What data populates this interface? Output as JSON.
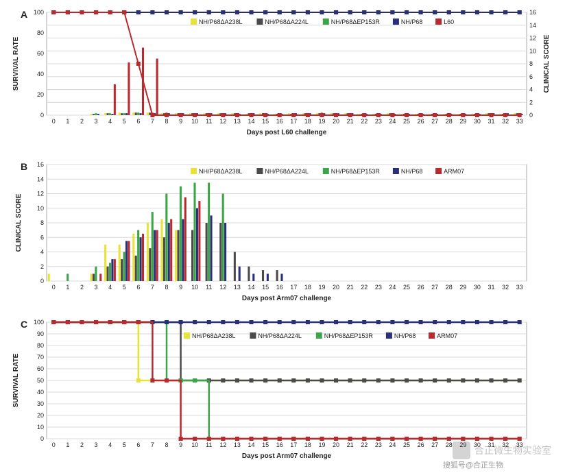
{
  "figure_bg": "#ffffff",
  "panel_labels": {
    "A": "A",
    "B": "B",
    "C": "C"
  },
  "series": {
    "s1": {
      "label": "NH/P68ΔA238L",
      "color": "#e8e337"
    },
    "s2": {
      "label": "NH/P68ΔA224L",
      "color": "#4a4a4a"
    },
    "s3": {
      "label": "NH/P68ΔEP153R",
      "color": "#3aa648"
    },
    "s4": {
      "label": "NH/P68",
      "color": "#2a2f7a"
    },
    "L60": {
      "label": "L60",
      "color": "#b9292e"
    },
    "ARM07": {
      "label": "ARM07",
      "color": "#b9292e"
    }
  },
  "panelA": {
    "type": "dual-axis bar+step",
    "x_label": "Days post L60 challenge",
    "y_left_label": "SURVIVAL RATE",
    "y_right_label": "CLINICAL SCORE",
    "x_ticks": [
      0,
      1,
      2,
      3,
      4,
      5,
      6,
      7,
      8,
      9,
      10,
      11,
      12,
      13,
      14,
      15,
      16,
      17,
      18,
      19,
      20,
      21,
      22,
      23,
      24,
      25,
      26,
      27,
      28,
      29,
      30,
      31,
      32,
      33
    ],
    "y_left_lim": [
      0,
      100
    ],
    "y_left_step": 20,
    "y_right_lim": [
      0,
      16
    ],
    "y_right_step": 2,
    "grid_color": "#d9d9d9",
    "survival_series": [
      "s1",
      "s2",
      "s3",
      "s4",
      "L60"
    ],
    "survival": {
      "s1": [
        100,
        100,
        100,
        100,
        100,
        100,
        100,
        100,
        100,
        100,
        100,
        100,
        100,
        100,
        100,
        100,
        100,
        100,
        100,
        100,
        100,
        100,
        100,
        100,
        100,
        100,
        100,
        100,
        100,
        100,
        100,
        100,
        100,
        100
      ],
      "s2": [
        100,
        100,
        100,
        100,
        100,
        100,
        100,
        100,
        100,
        100,
        100,
        100,
        100,
        100,
        100,
        100,
        100,
        100,
        100,
        100,
        100,
        100,
        100,
        100,
        100,
        100,
        100,
        100,
        100,
        100,
        100,
        100,
        100,
        100
      ],
      "s3": [
        100,
        100,
        100,
        100,
        100,
        100,
        100,
        100,
        100,
        100,
        100,
        100,
        100,
        100,
        100,
        100,
        100,
        100,
        100,
        100,
        100,
        100,
        100,
        100,
        100,
        100,
        100,
        100,
        100,
        100,
        100,
        100,
        100,
        100
      ],
      "s4": [
        100,
        100,
        100,
        100,
        100,
        100,
        100,
        100,
        100,
        100,
        100,
        100,
        100,
        100,
        100,
        100,
        100,
        100,
        100,
        100,
        100,
        100,
        100,
        100,
        100,
        100,
        100,
        100,
        100,
        100,
        100,
        100,
        100,
        100
      ],
      "L60": [
        100,
        100,
        100,
        100,
        100,
        100,
        50,
        0,
        0,
        0,
        0,
        0,
        0,
        0,
        0,
        0,
        0,
        0,
        0,
        0,
        0,
        0,
        0,
        0,
        0,
        0,
        0,
        0,
        0,
        0,
        0,
        0,
        0,
        0
      ]
    },
    "bars_order": [
      "s1",
      "s2",
      "s3",
      "s4",
      "L60"
    ],
    "clinical": {
      "s1": [
        0,
        0,
        0,
        0.2,
        0.3,
        0.4,
        0.4,
        0.4,
        0.3,
        0.3,
        0.3,
        0.3,
        0.3,
        0.3,
        0.2,
        0.3,
        0.2,
        0.3,
        0.3,
        0.3,
        0.3,
        0.3,
        0.2,
        0.2,
        0.3,
        0.2,
        0.2,
        0.2,
        0.2,
        0.2,
        0.2,
        0.3,
        0.2,
        0.3
      ],
      "s2": [
        0,
        0,
        0,
        0.2,
        0.3,
        0.3,
        0.4,
        0.4,
        0.3,
        0.3,
        0.3,
        0.3,
        0.3,
        0.3,
        0.3,
        0.3,
        0.2,
        0.2,
        0.3,
        0.3,
        0.3,
        0.3,
        0.2,
        0.2,
        0.3,
        0.2,
        0.2,
        0.2,
        0.2,
        0.2,
        0.2,
        0.3,
        0.2,
        0.3
      ],
      "s3": [
        0,
        0,
        0,
        0.3,
        0.3,
        0.3,
        0.4,
        0.4,
        0.4,
        0.3,
        0.3,
        0.3,
        0.3,
        0.3,
        0.3,
        0.3,
        0.3,
        0.3,
        0.3,
        0.4,
        0.3,
        0.3,
        0.3,
        0.3,
        0.3,
        0.3,
        0.3,
        0.2,
        0.3,
        0.2,
        0.2,
        0.3,
        0.3,
        0.3
      ],
      "s4": [
        0,
        0,
        0,
        0.2,
        0.2,
        0.3,
        0.3,
        0.3,
        0.3,
        0.3,
        0.3,
        0.3,
        0.3,
        0.2,
        0.3,
        0.2,
        0.2,
        0.3,
        0.3,
        0.3,
        0.3,
        0.3,
        0.2,
        0.2,
        0.2,
        0.2,
        0.2,
        0.2,
        0.2,
        0.2,
        0.2,
        0.3,
        0.3,
        0.2
      ],
      "L60": [
        0,
        0,
        0,
        0,
        4.8,
        8.2,
        10.5,
        8.8,
        0,
        0,
        0,
        0,
        0,
        0,
        0,
        0,
        0,
        0,
        0,
        0,
        0,
        0,
        0,
        0,
        0,
        0,
        0,
        0,
        0,
        0,
        0,
        0,
        0,
        0
      ]
    }
  },
  "panelB": {
    "type": "grouped-bar",
    "x_label": "Days post Arm07 challenge",
    "y_label": "CLINICAL SCORE",
    "x_ticks": [
      0,
      1,
      2,
      3,
      4,
      5,
      6,
      7,
      8,
      9,
      10,
      11,
      12,
      13,
      14,
      15,
      16,
      17,
      18,
      19,
      20,
      21,
      22,
      23,
      24,
      25,
      26,
      27,
      28,
      29,
      30,
      31,
      32,
      33
    ],
    "ylim": [
      0,
      16
    ],
    "y_step": 2,
    "grid_color": "#d9d9d9",
    "bars_order": [
      "s1",
      "s2",
      "s3",
      "s4",
      "ARM07"
    ],
    "clinical": {
      "s1": [
        1,
        0,
        0,
        1,
        5,
        5,
        6.5,
        8,
        8.5,
        7,
        0,
        0,
        0,
        0,
        0,
        0,
        0,
        0,
        0,
        0,
        0,
        0,
        0,
        0,
        0,
        0,
        0,
        0,
        0,
        0,
        0,
        0,
        0,
        0
      ],
      "s2": [
        0,
        0,
        0,
        1,
        2,
        3,
        3.5,
        4.5,
        6,
        7,
        7,
        8,
        8,
        4,
        2,
        1.5,
        1.5,
        0,
        0,
        0,
        0,
        0,
        0,
        0,
        0,
        0,
        0,
        0,
        0,
        0,
        0,
        0,
        0,
        0
      ],
      "s3": [
        0,
        1,
        0,
        2,
        2.5,
        4,
        7,
        9.5,
        12,
        13,
        13.5,
        13.5,
        12,
        0,
        0,
        0,
        0,
        0,
        0,
        0,
        0,
        0,
        0,
        0,
        0,
        0,
        0,
        0,
        0,
        0,
        0,
        0,
        0,
        0
      ],
      "s4": [
        0,
        0,
        0,
        0,
        3,
        5.5,
        6,
        7,
        8,
        8.5,
        10,
        9,
        8,
        2,
        1,
        1,
        1,
        0,
        0,
        0,
        0,
        0,
        0,
        0,
        0,
        0,
        0,
        0,
        0,
        0,
        0,
        0,
        0,
        0
      ],
      "ARM07": [
        0,
        0,
        0,
        1,
        3,
        5.5,
        6.5,
        7,
        8.5,
        11.5,
        11,
        0,
        0,
        0,
        0,
        0,
        0,
        0,
        0,
        0,
        0,
        0,
        0,
        0,
        0,
        0,
        0,
        0,
        0,
        0,
        0,
        0,
        0,
        0
      ]
    }
  },
  "panelC": {
    "type": "step-survival",
    "x_label": "Days post Arm07 challenge",
    "y_label": "SURVIVAL RATE",
    "x_ticks": [
      0,
      1,
      2,
      3,
      4,
      5,
      6,
      7,
      8,
      9,
      10,
      11,
      12,
      13,
      14,
      15,
      16,
      17,
      18,
      19,
      20,
      21,
      22,
      23,
      24,
      25,
      26,
      27,
      28,
      29,
      30,
      31,
      32,
      33
    ],
    "ylim": [
      0,
      100
    ],
    "y_step": 10,
    "grid_color": "#d9d9d9",
    "survival_series": [
      "s1",
      "s2",
      "s3",
      "s4",
      "ARM07"
    ],
    "survival": {
      "s1": [
        100,
        100,
        100,
        100,
        100,
        100,
        50,
        50,
        50,
        50,
        50,
        50,
        50,
        50,
        50,
        50,
        50,
        50,
        50,
        50,
        50,
        50,
        50,
        50,
        50,
        50,
        50,
        50,
        50,
        50,
        50,
        50,
        50,
        50
      ],
      "s2": [
        100,
        100,
        100,
        100,
        100,
        100,
        100,
        100,
        100,
        50,
        50,
        50,
        50,
        50,
        50,
        50,
        50,
        50,
        50,
        50,
        50,
        50,
        50,
        50,
        50,
        50,
        50,
        50,
        50,
        50,
        50,
        50,
        50,
        50
      ],
      "s3": [
        100,
        100,
        100,
        100,
        100,
        100,
        100,
        100,
        50,
        50,
        50,
        0,
        0,
        0,
        0,
        0,
        0,
        0,
        0,
        0,
        0,
        0,
        0,
        0,
        0,
        0,
        0,
        0,
        0,
        0,
        0,
        0,
        0,
        0
      ],
      "s4": [
        100,
        100,
        100,
        100,
        100,
        100,
        100,
        100,
        100,
        100,
        100,
        100,
        100,
        100,
        100,
        100,
        100,
        100,
        100,
        100,
        100,
        100,
        100,
        100,
        100,
        100,
        100,
        100,
        100,
        100,
        100,
        100,
        100,
        100
      ],
      "ARM07": [
        100,
        100,
        100,
        100,
        100,
        100,
        100,
        50,
        50,
        0,
        0,
        0,
        0,
        0,
        0,
        0,
        0,
        0,
        0,
        0,
        0,
        0,
        0,
        0,
        0,
        0,
        0,
        0,
        0,
        0,
        0,
        0,
        0,
        0
      ]
    }
  },
  "watermark": {
    "main": "合正微生物实验室",
    "sub": "搜狐号@合正生物"
  }
}
